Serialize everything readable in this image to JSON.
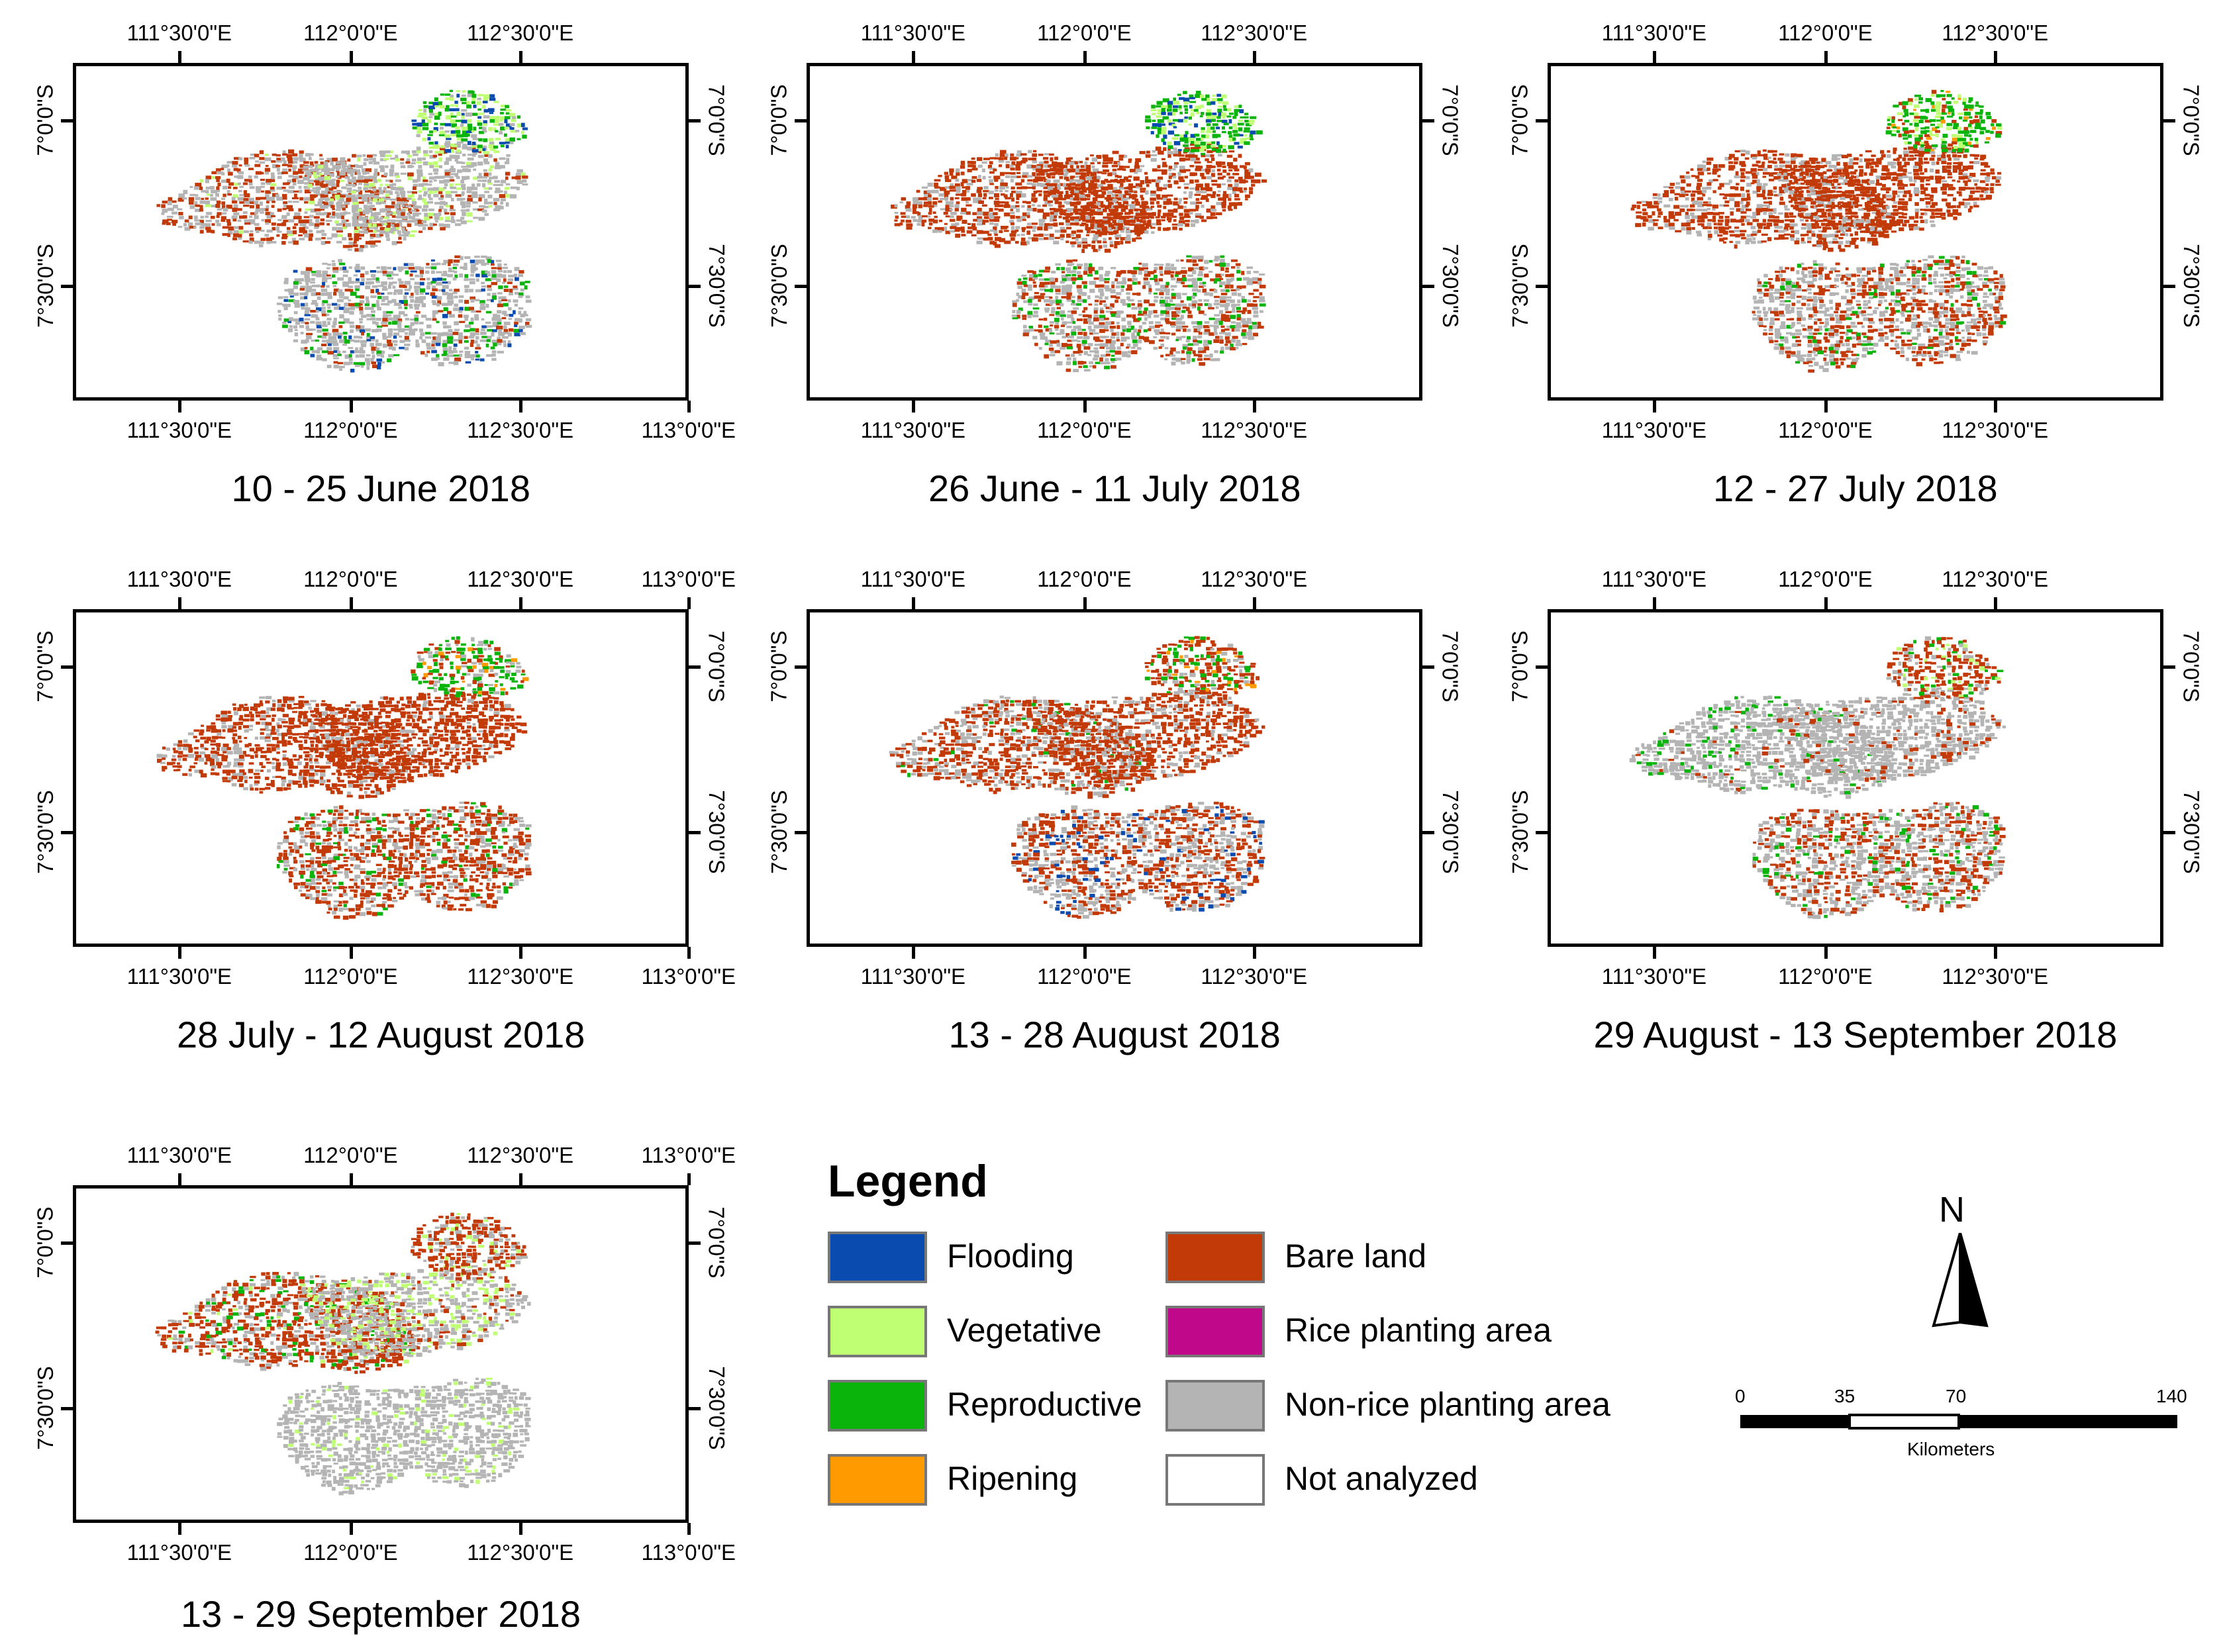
{
  "panels": [
    {
      "caption": "10 - 25 June 2018",
      "top_labels": [
        "111°30'0\"E",
        "112°0'0\"E",
        "112°30'0\"E"
      ],
      "bottom_labels": [
        "111°30'0\"E",
        "112°0'0\"E",
        "112°30'0\"E",
        "113°0'0\"E"
      ],
      "left_labels": [
        "7°0'0\"S",
        "7°30'0\"S"
      ],
      "right_labels": [
        "7°0'0\"S",
        "7°30'0\"S"
      ]
    },
    {
      "caption": "26 June - 11 July 2018",
      "top_labels": [
        "111°30'0\"E",
        "112°0'0\"E",
        "112°30'0\"E"
      ],
      "bottom_labels": [
        "111°30'0\"E",
        "112°0'0\"E",
        "112°30'0\"E"
      ],
      "left_labels": [
        "7°0'0\"S",
        "7°30'0\"S"
      ],
      "right_labels": [
        "7°0'0\"S",
        "7°30'0\"S"
      ]
    },
    {
      "caption": "12 - 27 July 2018",
      "top_labels": [
        "111°30'0\"E",
        "112°0'0\"E",
        "112°30'0\"E"
      ],
      "bottom_labels": [
        "111°30'0\"E",
        "112°0'0\"E",
        "112°30'0\"E"
      ],
      "left_labels": [
        "7°0'0\"S",
        "7°30'0\"S"
      ],
      "right_labels": [
        "7°0'0\"S",
        "7°30'0\"S"
      ]
    },
    {
      "caption": "28 July - 12 August 2018",
      "top_labels": [
        "111°30'0\"E",
        "112°0'0\"E",
        "112°30'0\"E",
        "113°0'0\"E"
      ],
      "bottom_labels": [
        "111°30'0\"E",
        "112°0'0\"E",
        "112°30'0\"E",
        "113°0'0\"E"
      ],
      "left_labels": [
        "7°0'0\"S",
        "7°30'0\"S"
      ],
      "right_labels": [
        "7°0'0\"S",
        "7°30'0\"S"
      ]
    },
    {
      "caption": "13 - 28 August 2018",
      "top_labels": [
        "111°30'0\"E",
        "112°0'0\"E",
        "112°30'0\"E"
      ],
      "bottom_labels": [
        "111°30'0\"E",
        "112°0'0\"E",
        "112°30'0\"E"
      ],
      "left_labels": [
        "7°0'0\"S",
        "7°30'0\"S"
      ],
      "right_labels": [
        "7°0'0\"S",
        "7°30'0\"S"
      ]
    },
    {
      "caption": "29 August - 13 September 2018",
      "top_labels": [
        "111°30'0\"E",
        "112°0'0\"E",
        "112°30'0\"E"
      ],
      "bottom_labels": [
        "111°30'0\"E",
        "112°0'0\"E",
        "112°30'0\"E"
      ],
      "left_labels": [
        "7°0'0\"S",
        "7°30'0\"S"
      ],
      "right_labels": [
        "7°0'0\"S",
        "7°30'0\"S"
      ]
    },
    {
      "caption": "13 - 29 September 2018",
      "top_labels": [
        "111°30'0\"E",
        "112°0'0\"E",
        "112°30'0\"E",
        "113°0'0\"E"
      ],
      "bottom_labels": [
        "111°30'0\"E",
        "112°0'0\"E",
        "112°30'0\"E",
        "113°0'0\"E"
      ],
      "left_labels": [
        "7°0'0\"S",
        "7°30'0\"S"
      ],
      "right_labels": [
        "7°0'0\"S",
        "7°30'0\"S"
      ]
    }
  ],
  "legend": {
    "title": "Legend",
    "items": [
      {
        "label": "Flooding",
        "color": "#0a4bb0"
      },
      {
        "label": "Vegetative",
        "color": "#bfff73"
      },
      {
        "label": "Reproductive",
        "color": "#0ab40a"
      },
      {
        "label": "Ripening",
        "color": "#ff9a00"
      },
      {
        "label": "Bare land",
        "color": "#c23a08"
      },
      {
        "label": "Rice planting area",
        "color": "#c0088a"
      },
      {
        "label": "Non-rice planting area",
        "color": "#b4b4b4"
      },
      {
        "label": "Not analyzed",
        "color": "#ffffff"
      }
    ]
  },
  "north_arrow": {
    "letter": "N"
  },
  "scale_bar": {
    "ticks": [
      "0",
      "35",
      "70",
      "140"
    ],
    "unit": "Kilometers"
  }
}
